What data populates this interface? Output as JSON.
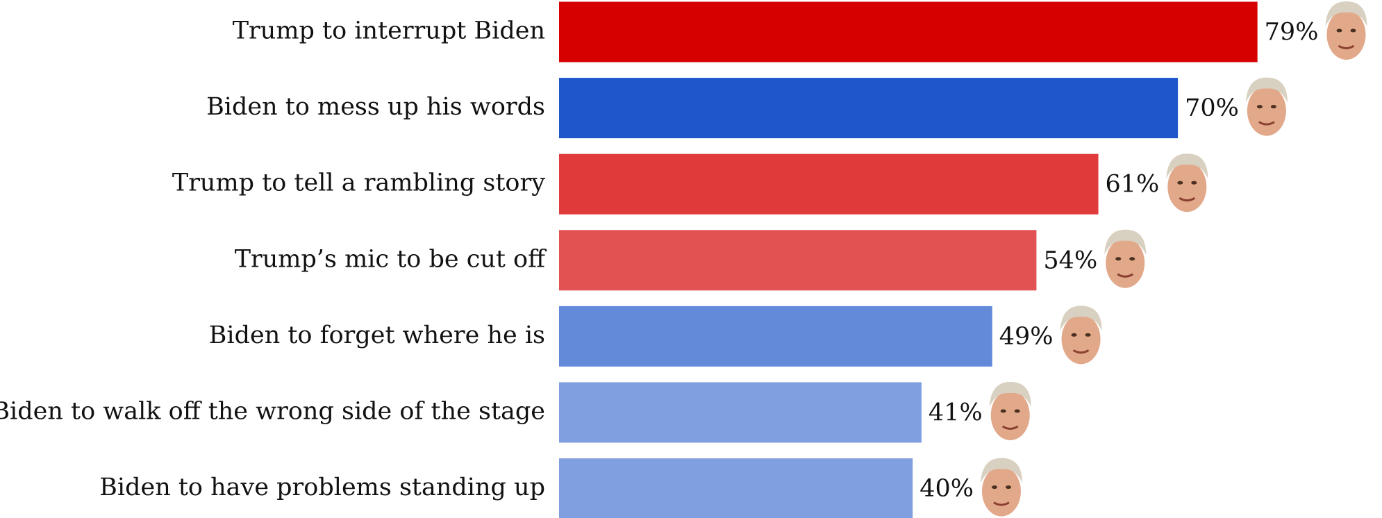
{
  "chart_data": {
    "type": "bar",
    "orientation": "horizontal",
    "categories": [
      "Trump to interrupt Biden",
      "Biden to mess up his words",
      "Trump to tell a rambling story",
      "Trump’s mic to be cut off",
      "Biden to forget where he is",
      "Biden to walk off the wrong side of the stage",
      "Biden to have problems standing up"
    ],
    "values": [
      79,
      70,
      61,
      54,
      49,
      41,
      40
    ],
    "value_labels": [
      "79%",
      "70%",
      "61%",
      "54%",
      "49%",
      "41%",
      "40%"
    ],
    "colors": [
      "#d70000",
      "#1f56cc",
      "#e03a3a",
      "#e35252",
      "#6389d9",
      "#7f9fe0",
      "#7f9fe0"
    ]
  }
}
